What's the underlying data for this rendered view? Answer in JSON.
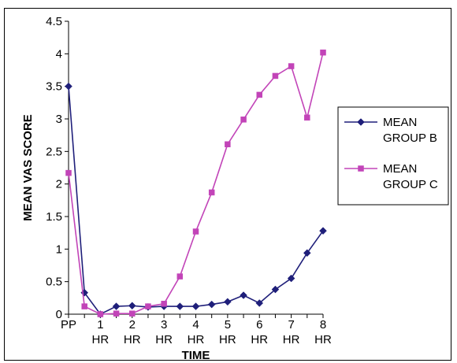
{
  "chart_data": {
    "type": "line",
    "xlabel": "TIME",
    "ylabel": "MEAN VAS SCORE",
    "ylim": [
      0,
      4.5
    ],
    "yticks": [
      "0",
      "0.5",
      "1",
      "1.5",
      "2",
      "2.5",
      "3",
      "3.5",
      "4",
      "4.5"
    ],
    "xtick_labels": [
      [
        "PP"
      ],
      [
        "1",
        "HR"
      ],
      [
        "2",
        "HR"
      ],
      [
        "3",
        "HR"
      ],
      [
        "4",
        "HR"
      ],
      [
        "5",
        "HR"
      ],
      [
        "6",
        "HR"
      ],
      [
        "7",
        "HR"
      ],
      [
        "8",
        "HR"
      ]
    ],
    "x": [
      0,
      0.5,
      1,
      1.5,
      2,
      2.5,
      3,
      3.5,
      4,
      4.5,
      5,
      5.5,
      6,
      6.5,
      7,
      7.5,
      8
    ],
    "legend_position": "right",
    "series": [
      {
        "name_lines": [
          "MEAN",
          "GROUP B"
        ],
        "color": "#1f1f7a",
        "marker": "diamond",
        "values": [
          3.5,
          0.33,
          0.0,
          0.12,
          0.13,
          0.11,
          0.12,
          0.12,
          0.12,
          0.15,
          0.19,
          0.29,
          0.17,
          0.38,
          0.55,
          0.94,
          1.28
        ]
      },
      {
        "name_lines": [
          "MEAN",
          "GROUP C"
        ],
        "color": "#c244b8",
        "marker": "square",
        "values": [
          2.17,
          0.12,
          0.0,
          0.01,
          0.01,
          0.12,
          0.16,
          0.58,
          1.27,
          1.87,
          2.61,
          2.99,
          3.37,
          3.66,
          3.81,
          3.02,
          4.02
        ]
      }
    ]
  }
}
